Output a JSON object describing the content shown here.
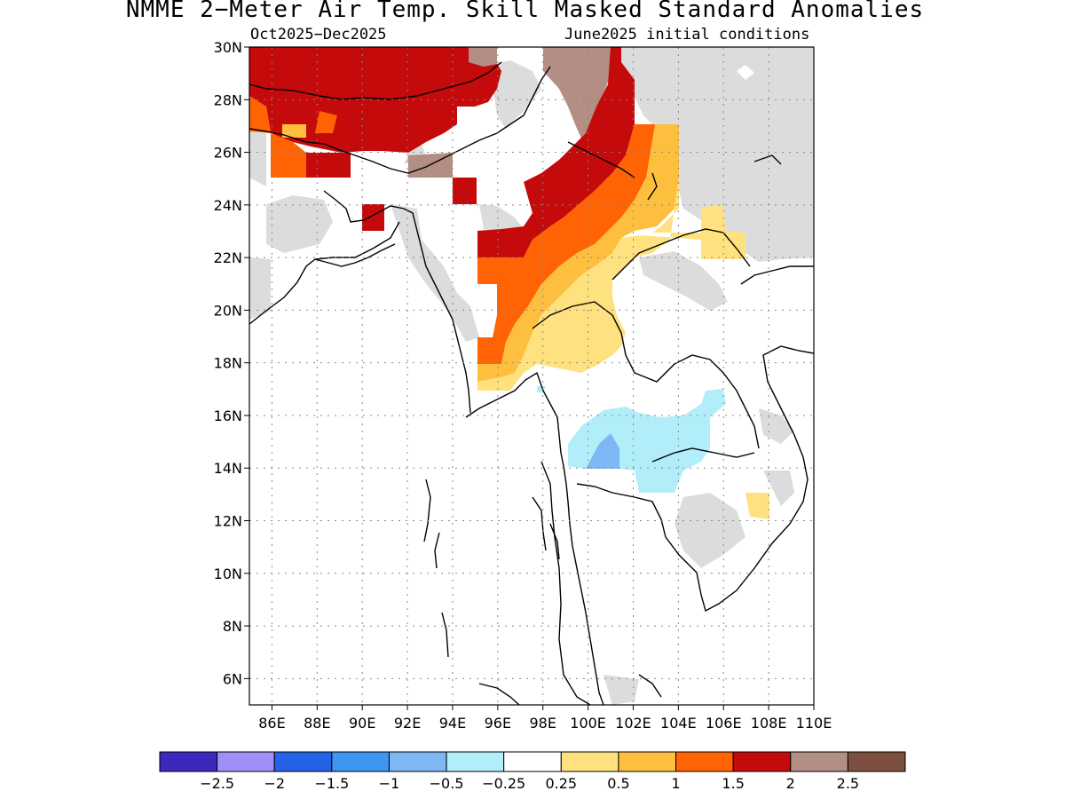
{
  "title": "NMME 2−Meter Air Temp. Skill Masked Standard Anomalies",
  "subtitle_left": "Oct2025−Dec2025",
  "subtitle_right": "June2025 initial conditions",
  "chart_data": {
    "type": "heatmap",
    "projection": "lat-lon",
    "x_range": [
      85,
      110
    ],
    "y_range": [
      5,
      30
    ],
    "lat_ticks": [
      "30N",
      "28N",
      "26N",
      "24N",
      "22N",
      "20N",
      "18N",
      "16N",
      "14N",
      "12N",
      "10N",
      "8N",
      "6N"
    ],
    "lon_ticks": [
      "86E",
      "88E",
      "90E",
      "92E",
      "94E",
      "96E",
      "98E",
      "100E",
      "102E",
      "104E",
      "106E",
      "108E",
      "110E"
    ],
    "grid": true,
    "colorbar": {
      "placement": "bottom",
      "labels": [
        "−2.5",
        "−2",
        "−1.5",
        "−1",
        "−0.5",
        "−0.25",
        "0.25",
        "0.5",
        "1",
        "1.5",
        "2",
        "2.5"
      ],
      "colors": [
        "#3c28bd",
        "#9f8ff6",
        "#2463e8",
        "#3f95f2",
        "#7db8f5",
        "#b2eefa",
        "#ffffff",
        "#ffe27f",
        "#ffbf3e",
        "#ff6304",
        "#c40a0b",
        "#b38e84",
        "#7d4f41"
      ]
    },
    "masked_color": "#dcdcdc",
    "regions": [
      {
        "name": "strong-warm",
        "category": "1.5 to 2",
        "color": "#c40a0b"
      },
      {
        "name": "very-strong-warm",
        "category": "2 to 2.5",
        "color": "#b38e84"
      },
      {
        "name": "warm",
        "category": "1 to 1.5",
        "color": "#ff6304"
      },
      {
        "name": "moderate-warm",
        "category": "0.5 to 1",
        "color": "#ffbf3e"
      },
      {
        "name": "slight-warm",
        "category": "0.25 to 0.5",
        "color": "#ffe27f"
      },
      {
        "name": "slight-cool",
        "category": "−0.5 to −0.25",
        "color": "#b2eefa"
      },
      {
        "name": "moderate-cool",
        "category": "−1 to −0.5",
        "color": "#7db8f5"
      }
    ]
  }
}
